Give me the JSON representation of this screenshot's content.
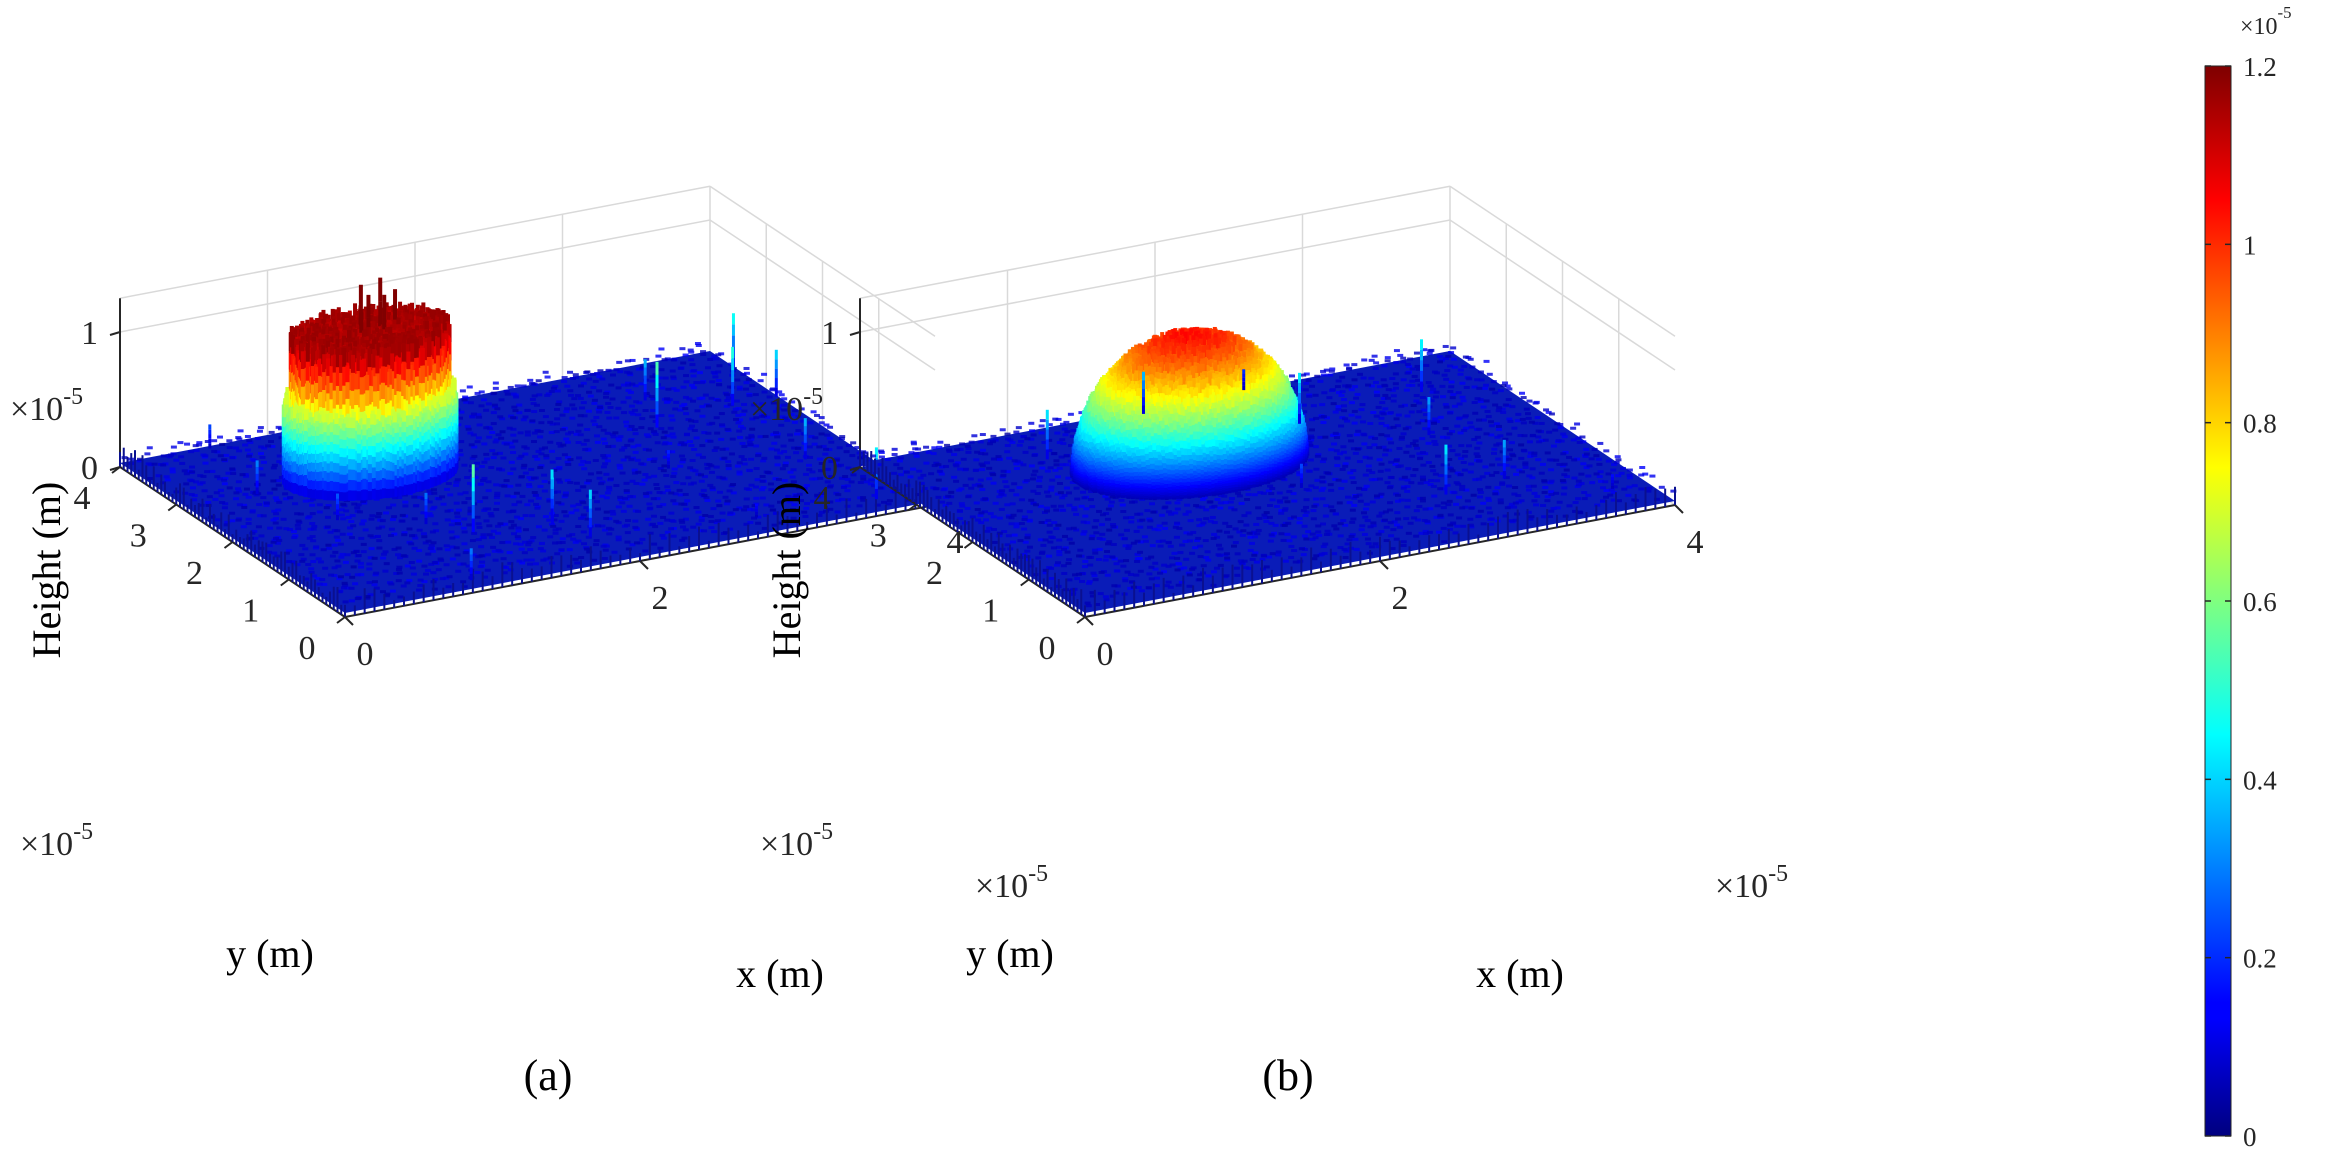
{
  "chart_data": [
    {
      "type": "surface",
      "panel_label": "(a)",
      "title": "",
      "xlabel": "x (m)",
      "ylabel": "y (m)",
      "zlabel": "Height (m)",
      "xlim": [
        0,
        4e-05
      ],
      "ylim": [
        0,
        4e-05
      ],
      "zlim": [
        0,
        1.2e-05
      ],
      "x_ticks": [
        "0",
        "2",
        "4"
      ],
      "y_ticks": [
        "0",
        "1",
        "2",
        "3",
        "4"
      ],
      "z_ticks": [
        "0",
        "1"
      ],
      "x_multiplier": "×10-5",
      "y_multiplier": "×10-5",
      "z_multiplier": "×10-5",
      "grid": true,
      "colormap": "jet",
      "feature": {
        "shape": "flat-topped pillar with sharp spikes and noisy background",
        "center": [
          1.2e-05,
          2.7e-05
        ],
        "radius": 5.5e-06,
        "peak_height": 1.2e-05,
        "background_height": 5e-07
      }
    },
    {
      "type": "surface",
      "panel_label": "(b)",
      "title": "",
      "xlabel": "x (m)",
      "ylabel": "y (m)",
      "zlabel": "Height (m)",
      "xlim": [
        0,
        4e-05
      ],
      "ylim": [
        0,
        4e-05
      ],
      "zlim": [
        0,
        1.2e-05
      ],
      "x_ticks": [
        "0",
        "2",
        "4"
      ],
      "y_ticks": [
        "0",
        "1",
        "2",
        "3",
        "4"
      ],
      "z_ticks": [
        "0",
        "1"
      ],
      "x_multiplier": "×10-5",
      "y_multiplier": "×10-5",
      "z_multiplier": "×10-5",
      "grid": true,
      "colormap": "jet",
      "feature": {
        "shape": "smooth dome with noisy background",
        "center": [
          1.7e-05,
          2.6e-05
        ],
        "radius": 7.5e-06,
        "peak_height": 1.05e-05,
        "background_height": 5e-07
      }
    }
  ],
  "colorbar": {
    "ticks": [
      "0",
      "0.2",
      "0.4",
      "0.6",
      "0.8",
      "1",
      "1.2"
    ],
    "tick_values": [
      0,
      0.2,
      0.4,
      0.6,
      0.8,
      1.0,
      1.2
    ],
    "multiplier": "×10-5",
    "colormap": "jet",
    "range": [
      0,
      1.2
    ]
  }
}
